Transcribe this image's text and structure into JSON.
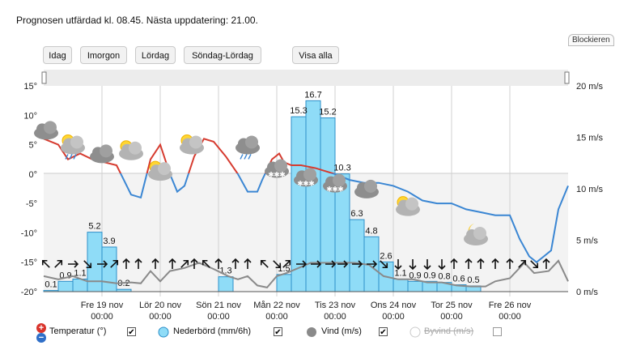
{
  "header": {
    "issued": "Prognosen utfärdad kl. 08.45. Nästa uppdatering: 21.00.",
    "block_label": "Blockieren"
  },
  "buttons": [
    {
      "id": "idag",
      "label": "Idag"
    },
    {
      "id": "imorgon",
      "label": "Imorgon"
    },
    {
      "id": "lordag",
      "label": "Lördag"
    },
    {
      "id": "sondag-lordag",
      "label": "Söndag-Lördag"
    },
    {
      "id": "visa-alla",
      "label": "Visa alla"
    }
  ],
  "legend": [
    {
      "label": "Temperatur (°)",
      "color": "#d63b2f",
      "checked": true
    },
    {
      "label": "Nederbörd (mm/6h)",
      "color": "#8fdcf7",
      "checked": true
    },
    {
      "label": "Vind (m/s)",
      "color": "#8a8a8a",
      "checked": true
    },
    {
      "label": "Byvind (m/s)",
      "color": "#cccccc",
      "checked": false
    }
  ],
  "colors": {
    "temp_warm": "#d63b2f",
    "temp_cold": "#3a86d3",
    "precip_fill": "#8fdcf7",
    "precip_stroke": "#2c8fc9",
    "wind": "#8a8a8a"
  },
  "chart_data": {
    "type": "line",
    "left_axis": {
      "ticks": [
        "15°",
        "10°",
        "5°",
        "0°",
        "-5°",
        "-10°",
        "-15°",
        "-20°"
      ],
      "ylim": [
        -20,
        15
      ]
    },
    "right_axis": {
      "ticks": [
        "20 m/s",
        "15 m/s",
        "10 m/s",
        "5 m/s",
        "0 m/s"
      ],
      "ylim": [
        0,
        20
      ]
    },
    "day_labels": [
      {
        "name": "Fre 19 nov",
        "time": "00:00",
        "x": 24
      },
      {
        "name": "Lör 20 nov",
        "time": "00:00",
        "x": 48
      },
      {
        "name": "Sön 21 nov",
        "time": "00:00",
        "x": 72
      },
      {
        "name": "Mån 22 nov",
        "time": "00:00",
        "x": 96
      },
      {
        "name": "Tis 23 nov",
        "time": "00:00",
        "x": 120
      },
      {
        "name": "Ons 24 nov",
        "time": "00:00",
        "x": 144
      },
      {
        "name": "Tor 25 nov",
        "time": "00:00",
        "x": 168
      },
      {
        "name": "Fre 26 nov",
        "time": "00:00",
        "x": 192
      }
    ],
    "xlim": [
      0,
      216
    ],
    "temperature": [
      [
        0,
        6
      ],
      [
        6,
        5
      ],
      [
        10,
        2.5
      ],
      [
        15,
        3.5
      ],
      [
        20,
        2.5
      ],
      [
        25,
        2
      ],
      [
        30,
        1.5
      ],
      [
        33,
        -1
      ],
      [
        36,
        -3.5
      ],
      [
        40,
        -4
      ],
      [
        44,
        2.5
      ],
      [
        48,
        5
      ],
      [
        52,
        0
      ],
      [
        55,
        -3
      ],
      [
        58,
        -2
      ],
      [
        62,
        3
      ],
      [
        66,
        6
      ],
      [
        70,
        5.5
      ],
      [
        75,
        3
      ],
      [
        80,
        0
      ],
      [
        84,
        -3
      ],
      [
        88,
        -3
      ],
      [
        90,
        -1
      ],
      [
        94,
        2.5
      ],
      [
        97,
        3.5
      ],
      [
        99,
        2
      ],
      [
        102,
        1.5
      ],
      [
        106,
        1.5
      ],
      [
        112,
        1
      ],
      [
        120,
        0
      ],
      [
        126,
        -1
      ],
      [
        132,
        -1.5
      ],
      [
        138,
        -1.5
      ],
      [
        144,
        -2
      ],
      [
        150,
        -3
      ],
      [
        156,
        -4.5
      ],
      [
        162,
        -5
      ],
      [
        168,
        -5
      ],
      [
        174,
        -6
      ],
      [
        180,
        -6.5
      ],
      [
        186,
        -7
      ],
      [
        192,
        -7
      ],
      [
        196,
        -11
      ],
      [
        200,
        -14
      ],
      [
        203,
        -15
      ],
      [
        206,
        -14
      ],
      [
        209,
        -13
      ],
      [
        212,
        -6
      ],
      [
        216,
        -2
      ]
    ],
    "precipitation": [
      {
        "x0": 0,
        "x1": 6,
        "v": 0.1
      },
      {
        "x0": 6,
        "x1": 12,
        "v": 0.9
      },
      {
        "x0": 12,
        "x1": 18,
        "v": 1.1
      },
      {
        "x0": 18,
        "x1": 24,
        "v": 5.2
      },
      {
        "x0": 24,
        "x1": 30,
        "v": 3.9
      },
      {
        "x0": 30,
        "x1": 36,
        "v": 0.2
      },
      {
        "x0": 72,
        "x1": 78,
        "v": 1.3
      },
      {
        "x0": 96,
        "x1": 102,
        "v": 1.5
      },
      {
        "x0": 102,
        "x1": 108,
        "v": 15.3
      },
      {
        "x0": 108,
        "x1": 114,
        "v": 16.7
      },
      {
        "x0": 114,
        "x1": 120,
        "v": 15.2
      },
      {
        "x0": 120,
        "x1": 126,
        "v": 10.3
      },
      {
        "x0": 126,
        "x1": 132,
        "v": 6.3
      },
      {
        "x0": 132,
        "x1": 138,
        "v": 4.8
      },
      {
        "x0": 138,
        "x1": 144,
        "v": 2.6
      },
      {
        "x0": 144,
        "x1": 150,
        "v": 1.1
      },
      {
        "x0": 150,
        "x1": 156,
        "v": 0.9
      },
      {
        "x0": 156,
        "x1": 162,
        "v": 0.9
      },
      {
        "x0": 162,
        "x1": 168,
        "v": 0.8
      },
      {
        "x0": 168,
        "x1": 174,
        "v": 0.6
      },
      {
        "x0": 174,
        "x1": 180,
        "v": 0.5
      }
    ],
    "wind": [
      [
        0,
        1.5
      ],
      [
        6,
        1.2
      ],
      [
        12,
        1.5
      ],
      [
        18,
        1
      ],
      [
        24,
        1
      ],
      [
        30,
        0.8
      ],
      [
        36,
        0.9
      ],
      [
        40,
        0.8
      ],
      [
        44,
        2
      ],
      [
        48,
        1
      ],
      [
        52,
        2
      ],
      [
        58,
        2.3
      ],
      [
        64,
        2.8
      ],
      [
        70,
        2.2
      ],
      [
        76,
        1.5
      ],
      [
        80,
        1.2
      ],
      [
        84,
        1.5
      ],
      [
        88,
        0.6
      ],
      [
        92,
        0.4
      ],
      [
        96,
        1.5
      ],
      [
        100,
        1.8
      ],
      [
        104,
        2.2
      ],
      [
        110,
        2.8
      ],
      [
        116,
        2.8
      ],
      [
        122,
        2.8
      ],
      [
        128,
        2.8
      ],
      [
        134,
        2.6
      ],
      [
        140,
        1.5
      ],
      [
        146,
        1.2
      ],
      [
        152,
        1.2
      ],
      [
        158,
        0.9
      ],
      [
        164,
        0.9
      ],
      [
        170,
        0.6
      ],
      [
        176,
        0.5
      ],
      [
        182,
        0.5
      ],
      [
        186,
        1
      ],
      [
        192,
        1.3
      ],
      [
        198,
        2.8
      ],
      [
        202,
        1.8
      ],
      [
        208,
        2
      ],
      [
        212,
        3
      ],
      [
        216,
        1
      ]
    ],
    "wind_arrows": [
      {
        "x": 1,
        "d": 315
      },
      {
        "x": 6,
        "d": 45
      },
      {
        "x": 12,
        "d": 90
      },
      {
        "x": 18,
        "d": 135
      },
      {
        "x": 24,
        "d": 90
      },
      {
        "x": 29,
        "d": 45
      },
      {
        "x": 34,
        "d": 0
      },
      {
        "x": 39,
        "d": 0
      },
      {
        "x": 46,
        "d": 0
      },
      {
        "x": 53,
        "d": 0
      },
      {
        "x": 58,
        "d": 45
      },
      {
        "x": 62,
        "d": 0
      },
      {
        "x": 67,
        "d": 315
      },
      {
        "x": 72,
        "d": 0
      },
      {
        "x": 79,
        "d": 0
      },
      {
        "x": 84,
        "d": 0
      },
      {
        "x": 91,
        "d": 315
      },
      {
        "x": 96,
        "d": 135
      },
      {
        "x": 100,
        "d": 45
      },
      {
        "x": 106,
        "d": 90
      },
      {
        "x": 112,
        "d": 90
      },
      {
        "x": 118,
        "d": 90
      },
      {
        "x": 123,
        "d": 90
      },
      {
        "x": 129,
        "d": 90
      },
      {
        "x": 135,
        "d": 90
      },
      {
        "x": 140,
        "d": 135
      },
      {
        "x": 146,
        "d": 180
      },
      {
        "x": 152,
        "d": 180
      },
      {
        "x": 158,
        "d": 180
      },
      {
        "x": 164,
        "d": 180
      },
      {
        "x": 169,
        "d": 0
      },
      {
        "x": 175,
        "d": 0
      },
      {
        "x": 180,
        "d": 0
      },
      {
        "x": 186,
        "d": 0
      },
      {
        "x": 192,
        "d": 0
      },
      {
        "x": 197,
        "d": 45
      },
      {
        "x": 202,
        "d": 135
      },
      {
        "x": 207,
        "d": 0
      }
    ],
    "weather_icons": [
      {
        "x": 1,
        "temp": 6,
        "kind": "cloud"
      },
      {
        "x": 12,
        "temp": 3.5,
        "kind": "partly-rain"
      },
      {
        "x": 24,
        "temp": 2,
        "kind": "cloud"
      },
      {
        "x": 36,
        "temp": 2.5,
        "kind": "partly-sunny"
      },
      {
        "x": 48,
        "temp": -1,
        "kind": "partly-sunny"
      },
      {
        "x": 61,
        "temp": 3.5,
        "kind": "partly-cloudy"
      },
      {
        "x": 84,
        "temp": 3.5,
        "kind": "rain"
      },
      {
        "x": 96,
        "temp": -0.5,
        "kind": "snow"
      },
      {
        "x": 108,
        "temp": -2,
        "kind": "snow"
      },
      {
        "x": 120,
        "temp": -3,
        "kind": "snow"
      },
      {
        "x": 133,
        "temp": -4,
        "kind": "cloud"
      },
      {
        "x": 150,
        "temp": -7,
        "kind": "partly-sunny"
      },
      {
        "x": 178,
        "temp": -12,
        "kind": "moon-cloud"
      }
    ]
  }
}
